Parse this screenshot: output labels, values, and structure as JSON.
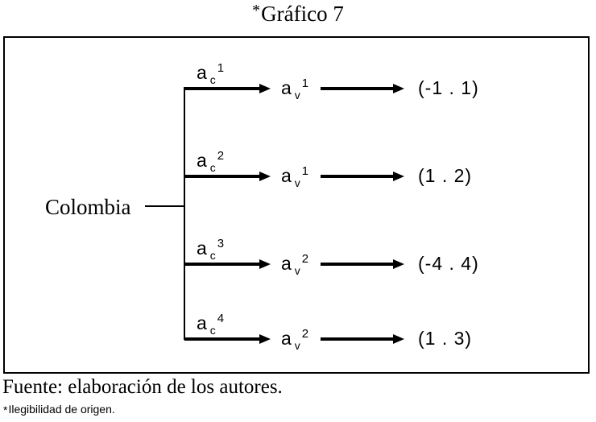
{
  "title": {
    "asterisk": "*",
    "text": "Gráfico 7"
  },
  "root_label": "Colombia",
  "rows": [
    {
      "c_base": "a",
      "c_sub": "c",
      "c_sup": "1",
      "v_base": "a",
      "v_sub": "v",
      "v_sup": "1",
      "result": "(-1 . 1)"
    },
    {
      "c_base": "a",
      "c_sub": "c",
      "c_sup": "2",
      "v_base": "a",
      "v_sub": "v",
      "v_sup": "1",
      "result": "(1 . 2)"
    },
    {
      "c_base": "a",
      "c_sub": "c",
      "c_sup": "3",
      "v_base": "a",
      "v_sub": "v",
      "v_sup": "2",
      "result": "(-4 . 4)"
    },
    {
      "c_base": "a",
      "c_sub": "c",
      "c_sup": "4",
      "v_base": "a",
      "v_sub": "v",
      "v_sup": "2",
      "result": "(1 . 3)"
    }
  ],
  "footer": {
    "source": "Fuente: elaboración de los autores.",
    "note_asterisk": "*",
    "note": "Ilegibilidad de origen."
  },
  "colors": {
    "ink": "#000000",
    "background": "#ffffff"
  }
}
